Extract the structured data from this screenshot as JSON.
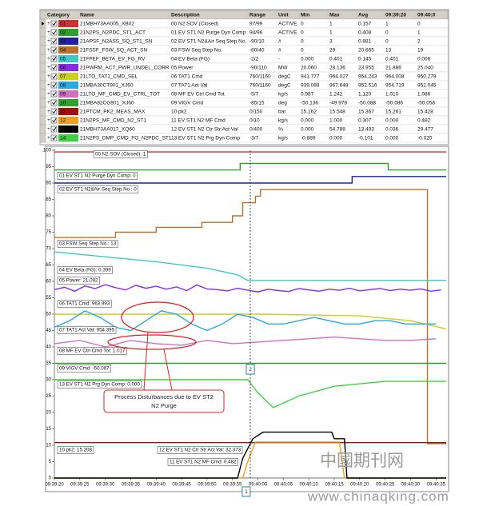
{
  "table": {
    "columns": [
      "Category",
      "Name",
      "Description",
      "Range",
      "Unit",
      "Min",
      "Max",
      "Avg",
      "09:39:20",
      "09:40:0"
    ],
    "rows": [
      [
        "01",
        "21MBH73AA005_XB02",
        "00 N2 SOV (Closed)",
        "97/99",
        "ACTIVE",
        "0",
        "1",
        "0.157",
        "1",
        "0"
      ],
      [
        "02",
        "21N2PS_N2PDC_ST1_ACT",
        "01 EV ST1 N2 Purge Dyn Comp",
        "94/96",
        "ACTIVE",
        "0",
        "1",
        "0.408",
        "0",
        "1"
      ],
      [
        "03",
        "21APSF_N2ASS_SQ_ST1_SN",
        "02 EV ST1 N2&Air Seq Step No.",
        "-90/10",
        "#",
        "0",
        "3",
        "0.881",
        "0",
        "2"
      ],
      [
        "04",
        "21FSSF_FSW_SQ_ACT_SN",
        "03 FSW Seq Step No.",
        "-60/40",
        "#",
        "0",
        "29",
        "20.665",
        "13",
        "19"
      ],
      [
        "05",
        "21FPEF_BETA_EV_FG_RV",
        "04 EV Beta (FG)",
        "-2/2",
        "-",
        "0.000",
        "0.401",
        "0.145",
        "0.401",
        "0.008"
      ],
      [
        "06",
        "21PWRM_ACT_PWR_UNDEL_CORR",
        "05 Power",
        "-90/110",
        "MW",
        "20.060",
        "28.136",
        "23.955",
        "21.886",
        "25.040"
      ],
      [
        "07",
        "21LTO_TAT1_CMD_SEL",
        "06 TAT1 Cmd",
        "760/1160",
        "degC",
        "941.777",
        "964.027",
        "954.243",
        "964.008",
        "950.279"
      ],
      [
        "08",
        "21MBA30CT901_XJ60",
        "07 TAT1 Act Val",
        "760/1160",
        "degC",
        "939.088",
        "967.648",
        "952.516",
        "954.719",
        "952.045"
      ],
      [
        "09",
        "21LTO_MF_CMD_EV_CTRL_TOT",
        "08 MF EV Ctrl Cmd Tot",
        "-5/7",
        "kg/s",
        "0.987",
        "1.242",
        "1.120",
        "1.010",
        "1.086"
      ],
      [
        "10",
        "21MBA82CG901_XJ60",
        "09 VIGV Cmd",
        "-85/15",
        "deg",
        "-50.136",
        "-49.978",
        "-50.088",
        "-50.086",
        "-50.058"
      ],
      [
        "11",
        "21PTCM_PK2_MEAS_MAX",
        "10 pk2",
        "0/150",
        "bar",
        "15.162",
        "15.548",
        "15.367",
        "15.261",
        "15.428"
      ],
      [
        "12",
        "21N2PS_MF_CMD_N2_ST1",
        "11 EV ST1 N2 MF Cmd",
        "0/10",
        "kg/s",
        "0.000",
        "1.000",
        "0.307",
        "0.000",
        "0.482"
      ],
      [
        "13",
        "21MBH73AA017_XQ60",
        "12 EV ST1 N2 Ctr Str Act Val",
        "0/400",
        "%",
        "0.000",
        "54.788",
        "13.493",
        "0.036",
        "29.477"
      ],
      [
        "14",
        "21N2PS_DMP_CMD_FO_N2PDC_ST1",
        "13 EV ST1 N2 Prg Dyn Comp",
        "-3/7",
        "kg/s",
        "-0.889",
        "0.000",
        "-0.101",
        "0.000",
        "-0.025"
      ]
    ]
  },
  "chart_data": {
    "type": "line",
    "xlim": [
      0,
      77
    ],
    "ylim": [
      0,
      100
    ],
    "xticks": [
      {
        "value": 0,
        "label": "09:39:20"
      },
      {
        "value": 5,
        "label": "09:39:25"
      },
      {
        "value": 10,
        "label": "09:39:30"
      },
      {
        "value": 15,
        "label": "09:39:35"
      },
      {
        "value": 20,
        "label": "09:39:40"
      },
      {
        "value": 25,
        "label": "09:39:45"
      },
      {
        "value": 30,
        "label": "09:39:50"
      },
      {
        "value": 35,
        "label": "09:39:55"
      },
      {
        "value": 40,
        "label": "09:40:00"
      },
      {
        "value": 45,
        "label": "09:40:05"
      },
      {
        "value": 50,
        "label": "09:40:10"
      },
      {
        "value": 55,
        "label": "09:40:15"
      },
      {
        "value": 60,
        "label": "09:40:20"
      },
      {
        "value": 65,
        "label": "09:40:25"
      },
      {
        "value": 70,
        "label": "09:40:30"
      },
      {
        "value": 75,
        "label": "09:40:35"
      }
    ],
    "yticks": [
      0,
      5,
      10,
      15,
      20,
      25,
      30,
      35,
      40,
      45,
      50,
      55,
      60,
      65,
      70,
      75,
      80,
      85,
      90,
      95,
      100
    ],
    "series": [
      {
        "name": "00 N2 SOV (Closed): 1",
        "color": "#d03030",
        "x": [
          0,
          77
        ],
        "values": [
          99.5,
          99.5
        ]
      },
      {
        "name": "01 EV ST1 N2 Purge Dyn Comp: 0",
        "color": "#2ea02e",
        "x": [
          0,
          36.5,
          36.5,
          65.6,
          65.6,
          77
        ],
        "values": [
          94,
          94,
          96,
          96,
          94,
          94
        ]
      },
      {
        "name": "02 EV ST1 N2&Air Seq Step No.: 0",
        "color": "#2020a0",
        "x": [
          0,
          58.5,
          58.5,
          77
        ],
        "values": [
          90,
          90,
          92,
          92
        ]
      },
      {
        "name": "03 FSW Seq Step No.: 13",
        "color": "#b8732a",
        "x": [
          0,
          12,
          12,
          20,
          20,
          29,
          29,
          35,
          35,
          37,
          37,
          39.5,
          39.5,
          40.5,
          40.5,
          73.3,
          73.3,
          77
        ],
        "values": [
          73.4,
          73.4,
          75,
          75,
          76.5,
          76.5,
          78,
          78,
          80,
          80,
          84,
          84,
          86,
          86,
          88,
          88,
          10.5,
          10.5
        ]
      },
      {
        "name": "04 EV Beta (FG): 0.399",
        "color": "#40c8c8",
        "x": [
          0,
          10,
          20,
          30,
          36,
          38,
          77
        ],
        "values": [
          69,
          67.5,
          66,
          64,
          62,
          60.3,
          60.3
        ]
      },
      {
        "name": "05 Power: 21.092",
        "color": "#8a2be2",
        "x": [
          0,
          2,
          4,
          6,
          8,
          10,
          12,
          14,
          16,
          18,
          20,
          22,
          24,
          26,
          28,
          30,
          32,
          34,
          36,
          38,
          40,
          42,
          44,
          46,
          48,
          50,
          52,
          54,
          56,
          58,
          60,
          62,
          64,
          66,
          68,
          70,
          72,
          74,
          76
        ],
        "values": [
          57.5,
          58.2,
          57.0,
          58.6,
          57.8,
          59.0,
          58.1,
          57.4,
          58.8,
          57.9,
          58.5,
          57.6,
          58.3,
          57.2,
          58.9,
          57.7,
          57.5,
          57.1,
          57.9,
          57.3,
          56.8,
          57.6,
          57.2,
          56.9,
          57.8,
          57.4,
          57.0,
          57.6,
          57.3,
          57.9,
          57.1,
          57.5,
          57.8,
          57.2,
          57.6,
          57.3,
          57.7,
          57.0,
          57.4
        ]
      },
      {
        "name": "06 TAT1 Cmd: 963.993",
        "color": "#c8d020",
        "x": [
          0,
          40,
          60,
          70,
          77
        ],
        "values": [
          50,
          50,
          49.5,
          48,
          45.5
        ]
      },
      {
        "name": "07 TAT1 Act Val: 954.395",
        "color": "#2aa8e0",
        "x": [
          0,
          3,
          6,
          9,
          12,
          15,
          18,
          21,
          24,
          27,
          30,
          33,
          36,
          39,
          42,
          45,
          48,
          51,
          54,
          57,
          60,
          63,
          66,
          69,
          72,
          75
        ],
        "values": [
          46,
          48,
          51,
          49,
          46,
          45,
          48,
          51,
          50,
          47,
          45,
          47,
          50,
          49,
          47,
          47,
          48,
          49,
          48,
          47,
          47,
          48,
          48,
          47,
          47,
          47
        ]
      },
      {
        "name": "08 MF EV Ctrl Cmd Tot: 1.017",
        "color": "#d070c0",
        "x": [
          0,
          5,
          10,
          15,
          20,
          25,
          30,
          35,
          40,
          45,
          50,
          55,
          60,
          65,
          70,
          75
        ],
        "values": [
          41,
          42,
          40,
          42,
          41,
          40.5,
          42,
          41,
          41.5,
          42,
          42.5,
          43,
          42.5,
          42,
          42,
          42.5
        ]
      },
      {
        "name": "09 VIGV Cmd: -50.067",
        "color": "#30a030",
        "x": [
          0,
          77
        ],
        "values": [
          35,
          35
        ]
      },
      {
        "name": "10 pk2: 15.208",
        "color": "#a01010",
        "x": [
          0,
          77
        ],
        "values": [
          10.8,
          10.8
        ]
      },
      {
        "name": "11 EV ST1 N2 MF Cmd: 0.482",
        "color": "#f0a020",
        "x": [
          0,
          37,
          38,
          39.5,
          56,
          57,
          77
        ],
        "values": [
          0,
          0,
          5,
          11,
          11,
          0,
          0
        ]
      },
      {
        "name": "12 EV ST1 N2 Ctr Str Act Val: 32.373",
        "color": "#000000",
        "x": [
          0,
          36,
          37,
          39,
          41,
          54.5,
          55,
          57,
          57.5,
          77
        ],
        "values": [
          0,
          0,
          6,
          12,
          14,
          14,
          12,
          12,
          0,
          0
        ]
      },
      {
        "name": "13 EV ST1 N2 Prg Dyn Comp: 0.000",
        "color": "#40d040",
        "x": [
          0,
          38,
          40,
          43,
          48,
          55,
          65,
          77
        ],
        "values": [
          30,
          30,
          26,
          21.5,
          25,
          28,
          29.5,
          29.5
        ]
      }
    ],
    "cursors": [
      {
        "x": 38.5,
        "label": "2"
      },
      {
        "x": 37.7,
        "label": "1"
      }
    ],
    "annotation": [
      "Process Disturbances due to EV ST2",
      "N2 Purge"
    ]
  },
  "watermark": {
    "logo": "中國期刊网",
    "url": "www.chinaqking.com"
  }
}
